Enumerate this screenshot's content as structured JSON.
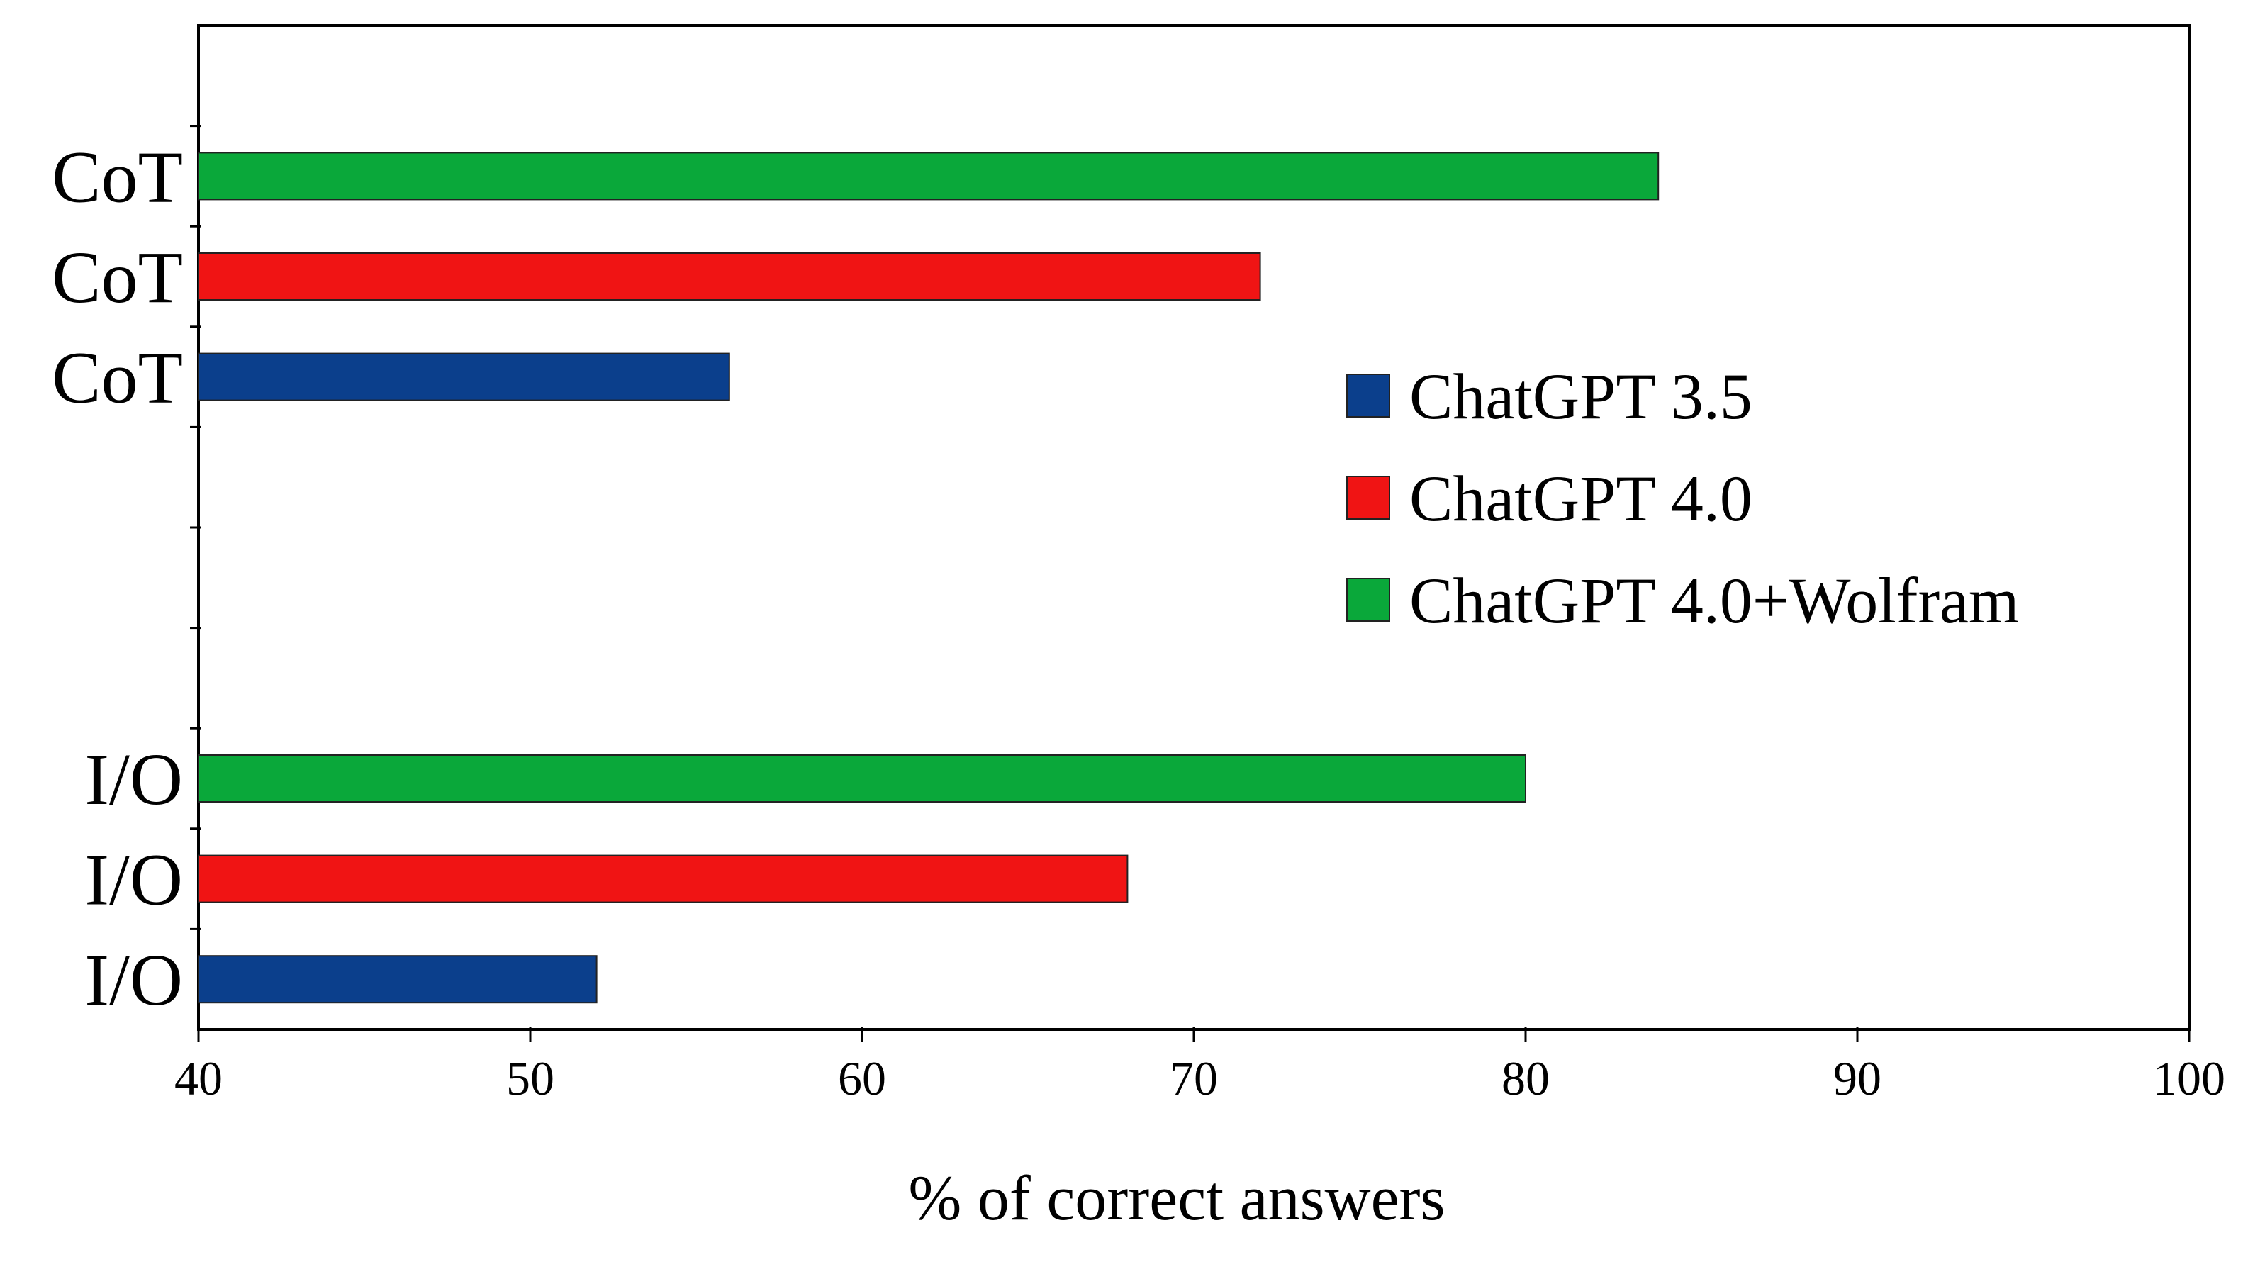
{
  "chart_data": {
    "type": "bar",
    "orientation": "horizontal",
    "title": "",
    "xlabel": "% of correct answers",
    "ylabel": "",
    "xlim": [
      40,
      100
    ],
    "xticks": [
      40,
      50,
      60,
      70,
      80,
      90,
      100
    ],
    "grid": false,
    "legend_position": "right",
    "groups": [
      {
        "label": "CoT",
        "bars": [
          {
            "series": "ChatGPT 4.0+Wolfram",
            "category": "CoT",
            "value": 84
          },
          {
            "series": "ChatGPT 4.0",
            "category": "CoT",
            "value": 72
          },
          {
            "series": "ChatGPT 3.5",
            "category": "CoT",
            "value": 56
          }
        ]
      },
      {
        "label": "I/O",
        "bars": [
          {
            "series": "ChatGPT 4.0+Wolfram",
            "category": "I/O",
            "value": 80
          },
          {
            "series": "ChatGPT 4.0",
            "category": "I/O",
            "value": 68
          },
          {
            "series": "ChatGPT 3.5",
            "category": "I/O",
            "value": 52
          }
        ]
      }
    ],
    "series": [
      {
        "name": "ChatGPT 3.5",
        "color": "#0b3f8c"
      },
      {
        "name": "ChatGPT 4.0",
        "color": "#f01414"
      },
      {
        "name": "ChatGPT 4.0+Wolfram",
        "color": "#0aa83a"
      }
    ]
  }
}
